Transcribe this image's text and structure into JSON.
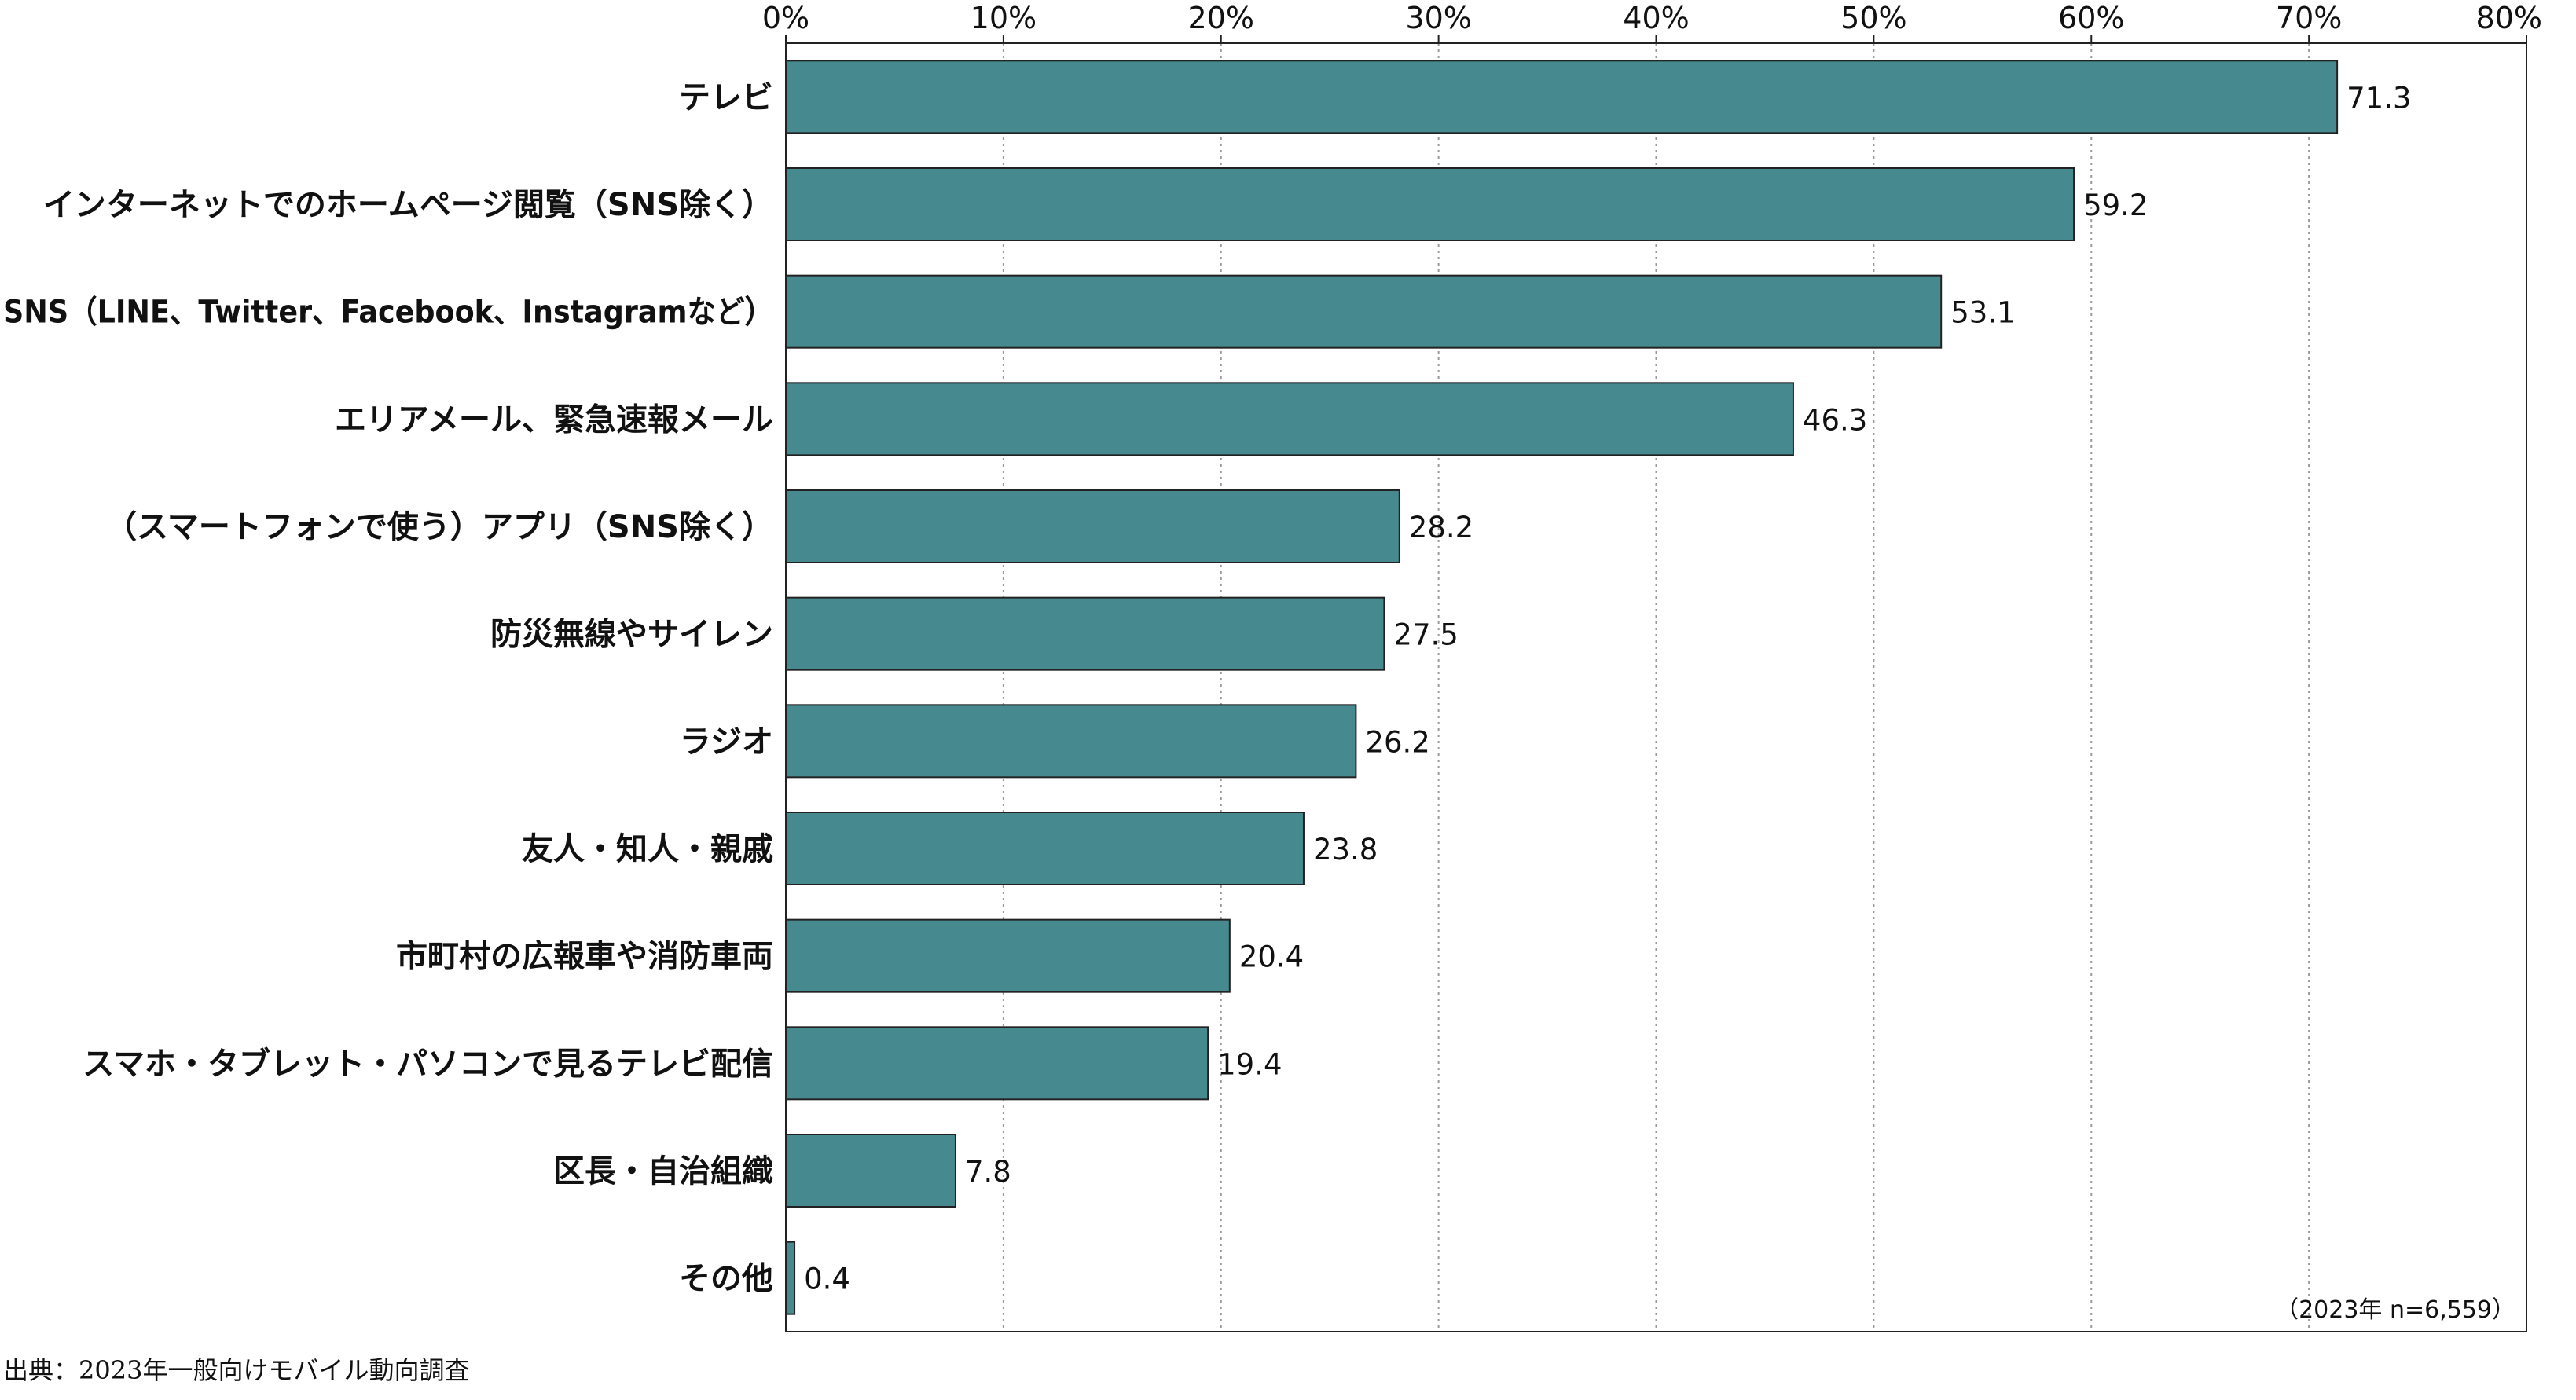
{
  "chart_data": {
    "type": "bar",
    "orientation": "horizontal",
    "categories": [
      "テレビ",
      "インターネットでのホームページ閲覧（SNS除く）",
      "SNS（LINE、Twitter、Facebook、Instagramなど）",
      "エリアメール、緊急速報メール",
      "（スマートフォンで使う）アプリ（SNS除く）",
      "防災無線やサイレン",
      "ラジオ",
      "友人・知人・親戚",
      "市町村の広報車や消防車両",
      "スマホ・タブレット・パソコンで見るテレビ配信",
      "区長・自治組織",
      "その他"
    ],
    "values": [
      71.3,
      59.2,
      53.1,
      46.3,
      28.2,
      27.5,
      26.2,
      23.8,
      20.4,
      19.4,
      7.8,
      0.4
    ],
    "value_labels": [
      "71.3",
      "59.2",
      "53.1",
      "46.3",
      "28.2",
      "27.5",
      "26.2",
      "23.8",
      "20.4",
      "19.4",
      "7.8",
      "0.4"
    ],
    "xlim": [
      0,
      80
    ],
    "xticks": [
      0,
      10,
      20,
      30,
      40,
      50,
      60,
      70,
      80
    ],
    "xtick_labels": [
      "0%",
      "10%",
      "20%",
      "30%",
      "40%",
      "50%",
      "60%",
      "70%",
      "80%"
    ],
    "x_axis_position": "top",
    "grid": "vertical dotted",
    "legend": "none",
    "bar_color": "#468a90",
    "bar_outline_color": "#222222",
    "sample_note": "（2023年 n=6,559）"
  },
  "source_note": "出典：2023年一般向けモバイル動向調査"
}
